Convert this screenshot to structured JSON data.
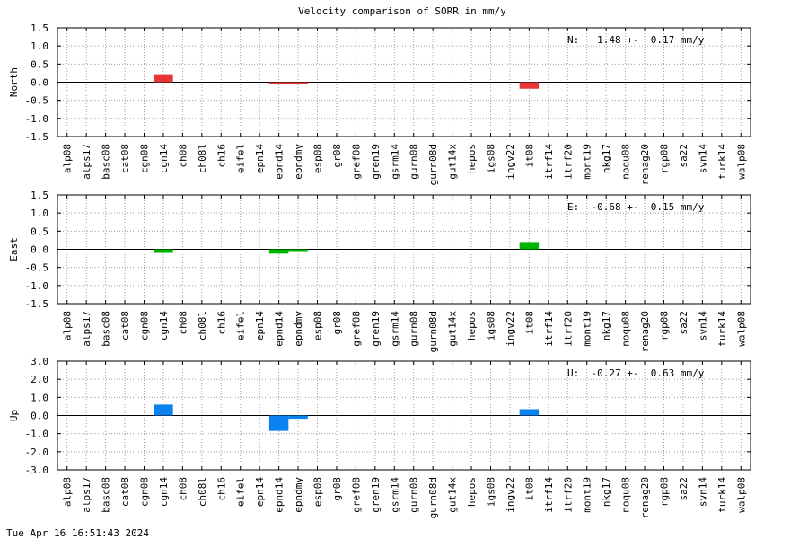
{
  "timestamp": "Tue Apr 16 16:51:43 2024",
  "chart_data": {
    "type": "bar",
    "title": "Velocity comparison of SORR in mm/y",
    "categories": [
      "alp08",
      "alps17",
      "basc08",
      "cat08",
      "cgn08",
      "cgn14",
      "ch08",
      "ch08l",
      "ch16",
      "eifel",
      "epn14",
      "epnd14",
      "epndmy",
      "esp08",
      "gr08",
      "gref08",
      "gren19",
      "gsrm14",
      "gurn08",
      "gurn08d",
      "gut14x",
      "hepos",
      "igs08",
      "ingv22",
      "it08",
      "itrf14",
      "itrf20",
      "mont19",
      "nkg17",
      "noqu08",
      "renag20",
      "rgp08",
      "sa22",
      "svn14",
      "turk14",
      "walp08"
    ],
    "panels": [
      {
        "ylabel": "North",
        "annotation": "N:   1.48 +-  0.17 mm/y",
        "color": "#e83535",
        "ylim": [
          -1.5,
          1.5
        ],
        "yticks": [
          "1.5",
          "1.0",
          "0.5",
          "0.0",
          "-0.5",
          "-1.0",
          "-1.5"
        ],
        "values": [
          null,
          null,
          null,
          null,
          null,
          0.22,
          null,
          null,
          null,
          null,
          null,
          -0.05,
          -0.05,
          null,
          null,
          null,
          null,
          null,
          null,
          null,
          null,
          null,
          null,
          null,
          -0.18,
          null,
          null,
          null,
          null,
          null,
          null,
          null,
          null,
          null,
          null,
          null
        ]
      },
      {
        "ylabel": "East",
        "annotation": "E:  -0.68 +-  0.15 mm/y",
        "color": "#00b400",
        "ylim": [
          -1.5,
          1.5
        ],
        "yticks": [
          "1.5",
          "1.0",
          "0.5",
          "0.0",
          "-0.5",
          "-1.0",
          "-1.5"
        ],
        "values": [
          null,
          null,
          null,
          null,
          null,
          -0.1,
          null,
          null,
          null,
          null,
          null,
          -0.12,
          -0.05,
          null,
          null,
          null,
          null,
          null,
          null,
          null,
          null,
          null,
          null,
          null,
          0.2,
          null,
          null,
          null,
          null,
          null,
          null,
          null,
          null,
          null,
          null,
          null
        ]
      },
      {
        "ylabel": "Up",
        "annotation": "U:  -0.27 +-  0.63 mm/y",
        "color": "#0a82f0",
        "ylim": [
          -3.0,
          3.0
        ],
        "yticks": [
          "3.0",
          "2.0",
          "1.0",
          "0.0",
          "-1.0",
          "-2.0",
          "-3.0"
        ],
        "values": [
          null,
          null,
          null,
          null,
          null,
          0.6,
          null,
          null,
          null,
          null,
          null,
          -0.85,
          -0.18,
          null,
          null,
          null,
          null,
          null,
          null,
          null,
          null,
          null,
          null,
          null,
          0.35,
          null,
          null,
          null,
          null,
          null,
          null,
          null,
          null,
          null,
          null,
          null
        ]
      }
    ]
  }
}
